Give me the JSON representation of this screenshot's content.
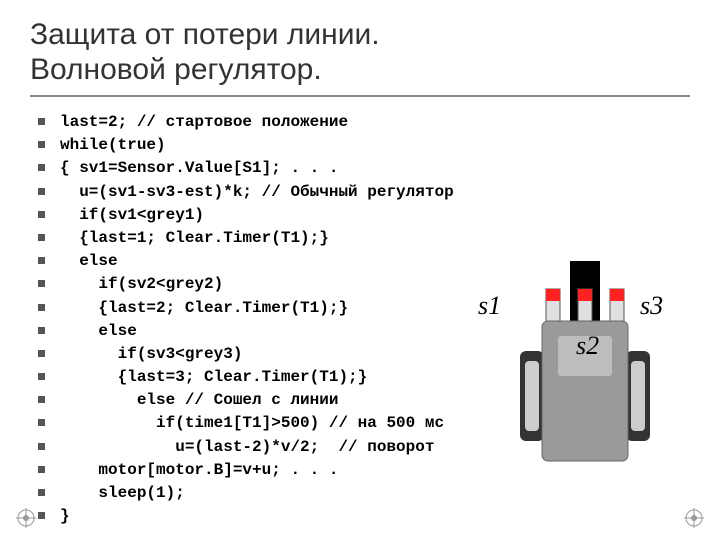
{
  "title_line1": "Защита от потери линии.",
  "title_line2": "Волновой регулятор.",
  "code": [
    "last=2; // стартовое положение",
    "while(true)",
    "{ sv1=Sensor.Value[S1]; . . .",
    "  u=(sv1-sv3-est)*k; // Обычный регулятор",
    "  if(sv1<grey1)",
    "  {last=1; Clear.Timer(T1);}",
    "  else",
    "    if(sv2<grey2)",
    "    {last=2; Clear.Timer(T1);}",
    "    else",
    "      if(sv3<grey3)",
    "      {last=3; Clear.Timer(T1);}",
    "        else // Сошел с линии",
    "          if(time1[T1]>500) // на 500 мс",
    "            u=(last-2)*v/2;  // поворот",
    "    motor[motor.B]=v+u; . . .",
    "    sleep(1);",
    "}"
  ],
  "labels": {
    "s1": "s1",
    "s2": "s2",
    "s3": "s3"
  },
  "robot": {
    "body_color": "#9a9a9a",
    "wheel_color": "#333333",
    "wheel_inner": "#cccccc",
    "sensor_red": "#ff2020",
    "sensor_body": "#e0e0e0",
    "black_strip": "#000000"
  },
  "style": {
    "title_fontsize": 30,
    "title_color": "#333333",
    "underline_color": "#888888",
    "code_fontsize": 16,
    "code_fontweight": "bold",
    "code_font": "Courier New",
    "bullet_color": "#555555",
    "background": "#ffffff",
    "label_fontsize": 26,
    "label_font": "Times New Roman"
  }
}
